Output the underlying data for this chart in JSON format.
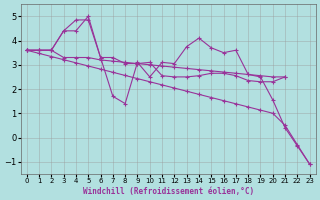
{
  "xlabel": "Windchill (Refroidissement éolien,°C)",
  "background_color": "#b2e0e0",
  "grid_color": "#999999",
  "line_color": "#993399",
  "xlim": [
    -0.5,
    23.5
  ],
  "ylim": [
    -1.5,
    5.5
  ],
  "xticks": [
    0,
    1,
    2,
    3,
    4,
    5,
    6,
    7,
    8,
    9,
    10,
    11,
    12,
    13,
    14,
    15,
    16,
    17,
    18,
    19,
    20,
    21,
    22,
    23
  ],
  "yticks": [
    -1,
    0,
    1,
    2,
    3,
    4,
    5
  ],
  "series": [
    {
      "x": [
        0,
        1,
        2,
        3,
        4,
        5,
        6,
        7,
        8,
        9,
        10,
        11,
        12,
        13,
        14,
        15,
        16,
        17,
        18,
        19,
        20,
        21,
        22,
        23
      ],
      "y": [
        3.6,
        3.6,
        3.6,
        4.4,
        4.4,
        5.0,
        3.3,
        1.7,
        1.4,
        3.1,
        2.5,
        3.1,
        3.05,
        3.75,
        4.1,
        3.7,
        3.5,
        3.6,
        2.6,
        2.5,
        1.55,
        0.4,
        -0.35,
        -1.1
      ]
    },
    {
      "x": [
        0,
        1,
        2,
        3,
        4,
        5,
        6,
        7,
        8,
        9,
        10,
        11,
        12,
        13,
        14,
        15,
        16,
        17,
        18,
        19,
        20,
        21
      ],
      "y": [
        3.6,
        3.6,
        3.6,
        4.4,
        4.85,
        4.85,
        3.3,
        3.3,
        3.05,
        3.05,
        3.1,
        2.55,
        2.5,
        2.5,
        2.55,
        2.65,
        2.65,
        2.55,
        2.35,
        2.3,
        2.3,
        2.5
      ]
    },
    {
      "x": [
        0,
        1,
        2,
        3,
        4,
        5,
        6,
        7,
        8,
        9,
        10,
        11,
        12,
        13,
        14,
        15,
        16,
        17,
        18,
        19,
        20,
        21,
        22,
        23
      ],
      "y": [
        3.6,
        3.47,
        3.34,
        3.21,
        3.08,
        2.95,
        2.82,
        2.69,
        2.56,
        2.43,
        2.3,
        2.17,
        2.04,
        1.91,
        1.78,
        1.65,
        1.52,
        1.39,
        1.26,
        1.13,
        1.0,
        0.5,
        -0.3,
        -1.1
      ]
    },
    {
      "x": [
        0,
        1,
        2,
        3,
        4,
        5,
        6,
        7,
        8,
        9,
        10,
        11,
        12,
        13,
        14,
        15,
        16,
        17,
        18,
        19,
        20,
        21
      ],
      "y": [
        3.6,
        3.6,
        3.6,
        3.3,
        3.3,
        3.3,
        3.2,
        3.15,
        3.1,
        3.05,
        3.0,
        2.95,
        2.9,
        2.85,
        2.8,
        2.75,
        2.7,
        2.65,
        2.6,
        2.55,
        2.5,
        2.5
      ]
    }
  ]
}
